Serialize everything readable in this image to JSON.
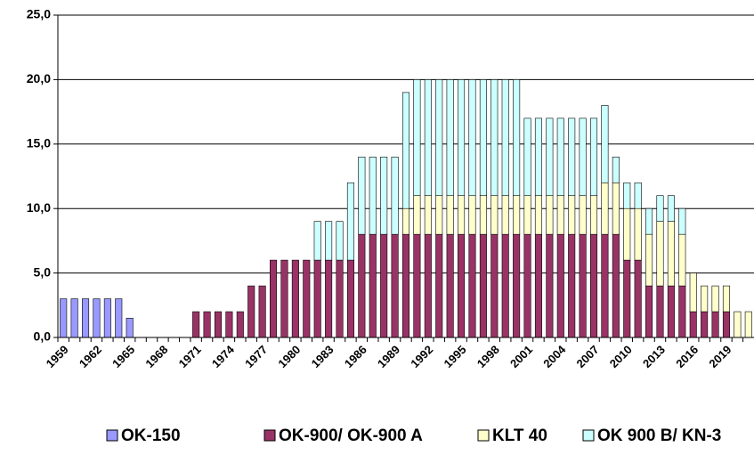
{
  "chart_data": {
    "type": "stacked-bar",
    "categories": [
      "1959",
      null,
      null,
      "1962",
      null,
      null,
      "1965",
      null,
      null,
      "1968",
      null,
      null,
      "1971",
      null,
      null,
      "1974",
      null,
      null,
      "1977",
      null,
      null,
      "1980",
      null,
      null,
      "1983",
      null,
      null,
      "1986",
      null,
      null,
      "1989",
      null,
      null,
      "1992",
      null,
      null,
      "1995",
      null,
      null,
      "1998",
      null,
      null,
      "2001",
      null,
      null,
      "2004",
      null,
      null,
      "2007",
      null,
      null,
      "2010",
      null,
      null,
      "2013",
      null,
      null,
      "2016",
      null,
      null,
      "2019",
      null,
      null
    ],
    "series": [
      {
        "name": "OK-150",
        "color": "#9999ff",
        "values": [
          3,
          3,
          3,
          3,
          3,
          3,
          1.5,
          0,
          0,
          0,
          0,
          0,
          0,
          0,
          0,
          0,
          0,
          0,
          0,
          0,
          0,
          0,
          0,
          0,
          0,
          0,
          0,
          0,
          0,
          0,
          0,
          0,
          0,
          0,
          0,
          0,
          0,
          0,
          0,
          0,
          0,
          0,
          0,
          0,
          0,
          0,
          0,
          0,
          0,
          0,
          0,
          0,
          0,
          0,
          0,
          0,
          0,
          0,
          0,
          0,
          0,
          0,
          0
        ]
      },
      {
        "name": "OK-900/ OK-900 A",
        "color": "#993366",
        "values": [
          0,
          0,
          0,
          0,
          0,
          0,
          0,
          0,
          0,
          0,
          0,
          0,
          2,
          2,
          2,
          2,
          2,
          4,
          4,
          6,
          6,
          6,
          6,
          6,
          6,
          6,
          6,
          8,
          8,
          8,
          8,
          8,
          8,
          8,
          8,
          8,
          8,
          8,
          8,
          8,
          8,
          8,
          8,
          8,
          8,
          8,
          8,
          8,
          8,
          8,
          8,
          6,
          6,
          4,
          4,
          4,
          4,
          2,
          2,
          2,
          2,
          0,
          0
        ]
      },
      {
        "name": "KLT 40",
        "color": "#ffffcc",
        "values": [
          0,
          0,
          0,
          0,
          0,
          0,
          0,
          0,
          0,
          0,
          0,
          0,
          0,
          0,
          0,
          0,
          0,
          0,
          0,
          0,
          0,
          0,
          0,
          0,
          0,
          0,
          0,
          0,
          0,
          0,
          0,
          2,
          3,
          3,
          3,
          3,
          3,
          3,
          3,
          3,
          3,
          3,
          3,
          3,
          3,
          3,
          3,
          3,
          3,
          4,
          4,
          4,
          4,
          4,
          5,
          5,
          4,
          3,
          2,
          2,
          2,
          2,
          2
        ]
      },
      {
        "name": "OK 900 B/ KN-3",
        "color": "#ccffff",
        "values": [
          0,
          0,
          0,
          0,
          0,
          0,
          0,
          0,
          0,
          0,
          0,
          0,
          0,
          0,
          0,
          0,
          0,
          0,
          0,
          0,
          0,
          0,
          0,
          3,
          3,
          3,
          6,
          6,
          6,
          6,
          6,
          9,
          9,
          9,
          9,
          9,
          9,
          9,
          9,
          9,
          9,
          9,
          6,
          6,
          6,
          6,
          6,
          6,
          6,
          6,
          2,
          2,
          2,
          2,
          2,
          2,
          2,
          0,
          0,
          0,
          0,
          0,
          0
        ]
      }
    ],
    "ylim": [
      0,
      25
    ],
    "yticks": [
      {
        "value": 0,
        "label": "0,0"
      },
      {
        "value": 5,
        "label": "5,0"
      },
      {
        "value": 10,
        "label": "10,0"
      },
      {
        "value": 15,
        "label": "15,0"
      },
      {
        "value": 20,
        "label": "20,0"
      },
      {
        "value": 25,
        "label": "25,0"
      }
    ],
    "grid": true
  }
}
